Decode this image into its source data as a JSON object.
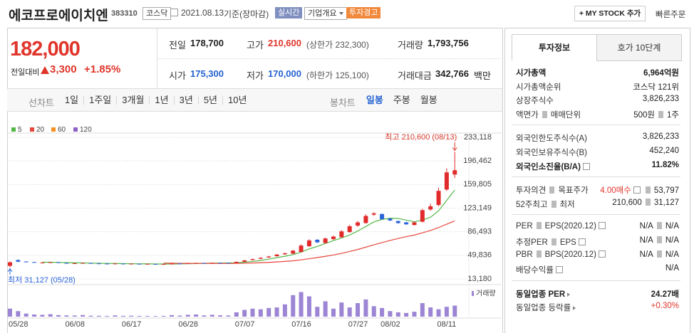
{
  "header": {
    "name": "에코프로에이치엔",
    "code": "383310",
    "market": "코스닥",
    "date": "2021.08.13",
    "basis": "기준(장마감)",
    "badges": [
      "실시간",
      "기업개요",
      "투자경고"
    ],
    "buttons": [
      "+ MY STOCK 추가",
      "빠른주문"
    ]
  },
  "price_panel": {
    "price": "182,000",
    "change_label": "전일대비",
    "change": "3,300",
    "change_rate": "+1.85%"
  },
  "stats": {
    "rows": [
      [
        {
          "label": "전일",
          "value": "178,700"
        },
        {
          "label": "고가",
          "value": "210,600",
          "note": "(상한가 232,300)"
        },
        {
          "label": "거래량",
          "value": "1,793,756"
        }
      ],
      [
        {
          "label": "시가",
          "value": "175,300"
        },
        {
          "label": "저가",
          "value": "170,000",
          "note": "(하한가 125,100)"
        },
        {
          "label": "거래대금",
          "value": "342,766",
          "unit": "백만"
        }
      ]
    ]
  },
  "chart_tabs": {
    "line_label": "선차트",
    "line_periods": [
      "1일",
      "1주일",
      "3개월",
      "1년",
      "3년",
      "5년",
      "10년"
    ],
    "candle_label": "봉차트",
    "candle_periods": [
      "일봉",
      "주봉",
      "월봉"
    ]
  },
  "chart_data": {
    "type": "candlestick",
    "categories": [
      "05/28",
      null,
      null,
      null,
      null,
      null,
      null,
      "06/08",
      null,
      null,
      null,
      null,
      null,
      null,
      "06/17",
      null,
      null,
      null,
      null,
      null,
      null,
      "06/28",
      null,
      null,
      null,
      null,
      null,
      null,
      "07/07",
      null,
      null,
      null,
      null,
      null,
      null,
      "07/16",
      null,
      null,
      null,
      null,
      null,
      null,
      "07/27",
      null,
      null,
      null,
      "08/02",
      null,
      null,
      null,
      null,
      null,
      null,
      "08/11",
      null,
      null
    ],
    "open": [
      33500,
      42500,
      40200,
      39300,
      38000,
      38800,
      39000,
      38000,
      37200,
      37600,
      37800,
      37300,
      37000,
      36700,
      37000,
      36400,
      36700,
      36100,
      36400,
      36100,
      36400,
      37200,
      36900,
      37600,
      38000,
      37800,
      38300,
      38200,
      38000,
      39900,
      42500,
      44500,
      46500,
      48500,
      51500,
      52500,
      55000,
      64000,
      74000,
      69000,
      75000,
      78000,
      86000,
      96000,
      100000,
      113000,
      114000,
      107000,
      103000,
      101000,
      97000,
      102000,
      121000,
      128000,
      152000,
      175300
    ],
    "high": [
      40500,
      43500,
      40800,
      39800,
      39000,
      39400,
      39300,
      38400,
      37900,
      38200,
      38100,
      37600,
      37300,
      37400,
      37200,
      37100,
      36900,
      36800,
      36600,
      36500,
      37300,
      37400,
      37800,
      38300,
      38200,
      38500,
      38600,
      38300,
      40200,
      42800,
      44800,
      46800,
      48800,
      51800,
      54000,
      58500,
      67000,
      75000,
      75000,
      77500,
      80500,
      89000,
      97000,
      103000,
      113500,
      117000,
      115000,
      108000,
      104000,
      102000,
      102500,
      122000,
      130000,
      155000,
      185000,
      210600
    ],
    "low": [
      31127,
      39000,
      39000,
      38500,
      37700,
      38400,
      38000,
      37600,
      37100,
      37400,
      37000,
      36800,
      36600,
      36600,
      36300,
      36300,
      36000,
      36000,
      35800,
      35900,
      36200,
      36600,
      36700,
      37400,
      37400,
      37600,
      37800,
      37600,
      37800,
      39600,
      42000,
      43800,
      45800,
      47800,
      50800,
      52000,
      54500,
      63000,
      69000,
      68000,
      74000,
      77000,
      85000,
      94000,
      99000,
      111000,
      105000,
      103000,
      99000,
      97000,
      96000,
      101000,
      119000,
      126000,
      150000,
      170000
    ],
    "close": [
      39000,
      40000,
      39500,
      38800,
      38500,
      39000,
      38200,
      37800,
      37500,
      37900,
      37200,
      37000,
      36800,
      37100,
      36500,
      36900,
      36200,
      36600,
      36000,
      36300,
      37000,
      36800,
      37500,
      38000,
      37600,
      38200,
      38000,
      37800,
      39700,
      42000,
      44000,
      46000,
      48000,
      51000,
      53000,
      57000,
      65000,
      73000,
      70000,
      76000,
      79000,
      87000,
      95000,
      101000,
      111000,
      115000,
      106000,
      104000,
      100000,
      98000,
      101000,
      120000,
      126000,
      150000,
      178700,
      182000
    ],
    "up_color": "#e12b2b",
    "down_color": "#2b63d9",
    "series": [
      {
        "name": "5",
        "color": "#53b848",
        "values": [
          null,
          null,
          null,
          null,
          39160,
          39160,
          38800,
          38460,
          38200,
          38080,
          37720,
          37480,
          37280,
          37200,
          36920,
          36860,
          36700,
          36660,
          36440,
          36400,
          36420,
          36540,
          36720,
          37120,
          37380,
          37620,
          37860,
          37920,
          38260,
          39140,
          40300,
          41900,
          43940,
          46200,
          48400,
          51000,
          54800,
          59800,
          63600,
          68200,
          72600,
          77000,
          81400,
          87600,
          94600,
          101800,
          105600,
          107400,
          107200,
          104600,
          101800,
          104600,
          109000,
          119000,
          135140,
          151340
        ]
      },
      {
        "name": "20",
        "color": "#e6473c",
        "values": [
          null,
          null,
          null,
          null,
          null,
          null,
          null,
          null,
          null,
          null,
          null,
          null,
          null,
          null,
          null,
          null,
          null,
          null,
          null,
          37700,
          37600,
          37450,
          37350,
          37300,
          37250,
          37200,
          37200,
          37200,
          37300,
          37550,
          37900,
          38350,
          38900,
          39600,
          40400,
          41400,
          42800,
          44600,
          46300,
          48300,
          50400,
          52900,
          55800,
          58900,
          62500,
          66200,
          69600,
          72900,
          76000,
          78900,
          81300,
          84800,
          88400,
          92900,
          98200,
          103400
        ]
      },
      {
        "name": "60",
        "color": "#f5901e",
        "values": [
          null,
          null,
          null,
          null,
          null,
          null,
          null,
          null,
          null,
          null,
          null,
          null,
          null,
          null,
          null,
          null,
          null,
          null,
          null,
          null,
          null,
          null,
          null,
          null,
          null,
          null,
          null,
          null,
          null,
          null,
          null,
          null,
          null,
          null,
          null,
          null,
          null,
          null,
          null,
          null,
          null,
          null,
          null,
          null,
          null,
          null,
          null,
          null,
          null,
          null,
          null,
          null,
          null,
          null,
          null,
          null
        ]
      },
      {
        "name": "120",
        "color": "#8e63c9",
        "values": [
          null,
          null,
          null,
          null,
          null,
          null,
          null,
          null,
          null,
          null,
          null,
          null,
          null,
          null,
          null,
          null,
          null,
          null,
          null,
          null,
          null,
          null,
          null,
          null,
          null,
          null,
          null,
          null,
          null,
          null,
          null,
          null,
          null,
          null,
          null,
          null,
          null,
          null,
          null,
          null,
          null,
          null,
          null,
          null,
          null,
          null,
          null,
          null,
          null,
          null,
          null,
          null,
          null,
          null,
          null,
          null
        ]
      }
    ],
    "ylim": [
      13180,
      233118
    ],
    "yticks": [
      {
        "value": 233118,
        "label": "233,118"
      },
      {
        "value": 196462,
        "label": "196,462"
      },
      {
        "value": 159805,
        "label": "159,805"
      },
      {
        "value": 123149,
        "label": "123,149"
      },
      {
        "value": 86493,
        "label": "86,493"
      },
      {
        "value": 49836,
        "label": "49,836"
      },
      {
        "value": 13180,
        "label": "13,180"
      }
    ],
    "grid": true,
    "annotations": [
      {
        "text": "최고 210,600 (08/13)",
        "color": "#d93a2f"
      },
      {
        "text": "최저 31,127 (05/28)",
        "color": "#2b63d9"
      }
    ],
    "volume": {
      "label": "거래량",
      "color": "#9c85d4",
      "ylim": [
        0,
        4400000
      ],
      "values": [
        1300000,
        900000,
        500000,
        350000,
        300000,
        400000,
        250000,
        200000,
        180000,
        260000,
        150000,
        140000,
        120000,
        200000,
        130000,
        150000,
        120000,
        110000,
        100000,
        120000,
        250000,
        160000,
        300000,
        350000,
        200000,
        300000,
        220000,
        180000,
        700000,
        1100000,
        1300000,
        1200000,
        1400000,
        1500000,
        2000000,
        3500000,
        4000000,
        3300000,
        1600000,
        2500000,
        1300000,
        2300000,
        1500000,
        2200000,
        2800000,
        1700000,
        1400000,
        900000,
        700000,
        600000,
        800000,
        2200000,
        1500000,
        1200000,
        1600000,
        1793756
      ]
    }
  },
  "info_panel": {
    "tabs": [
      "투자정보",
      "호가 10단계"
    ],
    "groups": [
      [
        {
          "label": [
            "시가총액"
          ],
          "value": [
            "6,964억원"
          ]
        },
        {
          "label": [
            "시가총액순위"
          ],
          "value": [
            "코스닥 121위"
          ]
        },
        {
          "label": [
            "상장주식수"
          ],
          "value": [
            "3,826,233"
          ]
        },
        {
          "label": [
            "액면가",
            "매매단위"
          ],
          "value": [
            "500원",
            "1주"
          ]
        }
      ],
      [
        {
          "label": [
            "외국인한도주식수(A)"
          ],
          "value": [
            "3,826,233"
          ]
        },
        {
          "label": [
            "외국인보유주식수(B)"
          ],
          "value": [
            "452,240"
          ]
        },
        {
          "label": [
            "외국인소진율(B/A)"
          ],
          "value": [
            "11.82%"
          ]
        }
      ],
      [
        {
          "label": [
            "투자의견",
            "목표주가"
          ],
          "value": [
            "4.00매수",
            "53,797"
          ]
        },
        {
          "label": [
            "52주최고",
            "최저"
          ],
          "value": [
            "210,600",
            "31,127"
          ]
        }
      ],
      [
        {
          "label": [
            "PER",
            "EPS(2020.12)"
          ],
          "value": [
            "N/A",
            "N/A"
          ]
        },
        {
          "label": [
            "추정PER",
            "EPS"
          ],
          "value": [
            "N/A",
            "N/A"
          ]
        },
        {
          "label": [
            "PBR",
            "BPS(2020.12)"
          ],
          "value": [
            "N/A",
            "N/A"
          ]
        },
        {
          "label": [
            "배당수익률"
          ],
          "value": [
            "N/A"
          ]
        }
      ],
      [
        {
          "label": [
            "동일업종 PER"
          ],
          "value": [
            "24.27배"
          ]
        },
        {
          "label": [
            "동일업종 등락률"
          ],
          "value": [
            "+0.30%"
          ]
        }
      ]
    ]
  }
}
